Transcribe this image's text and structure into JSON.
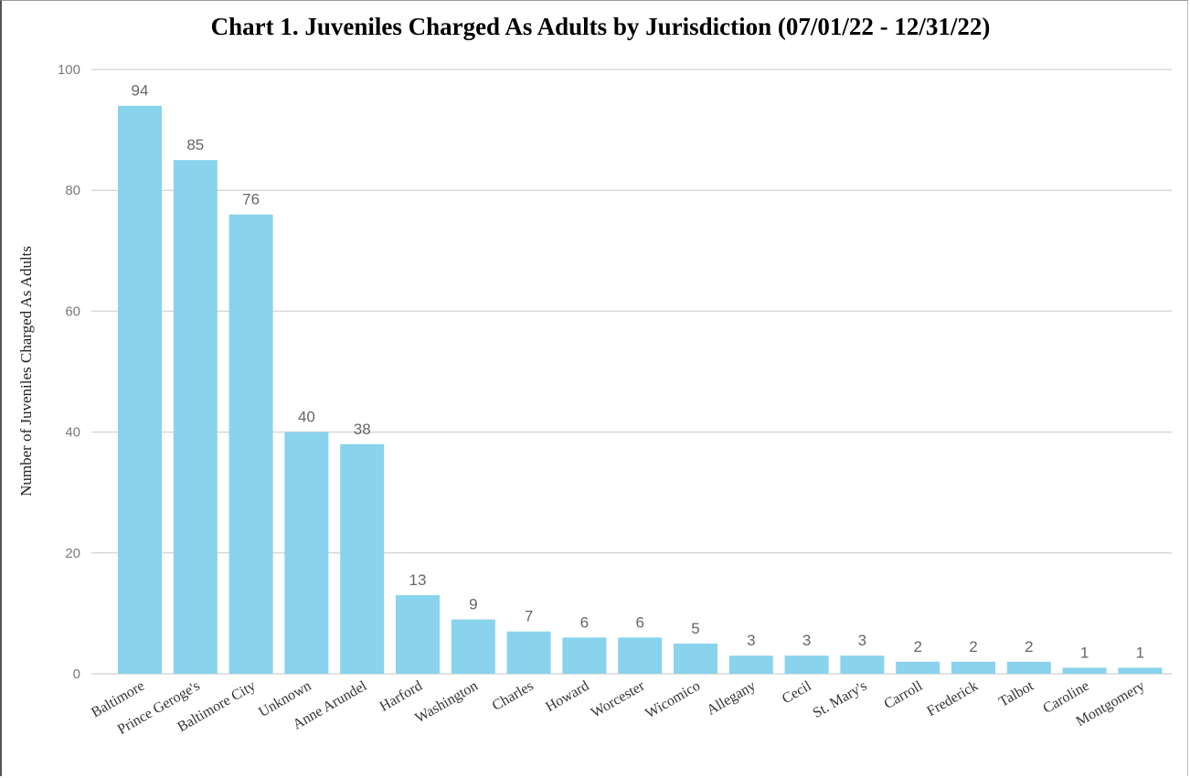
{
  "chart_data": {
    "type": "bar",
    "title": "Chart 1. Juveniles Charged As Adults by Jurisdiction (07/01/22 - 12/31/22)",
    "xlabel": "",
    "ylabel": "Number of Juveniles Charged As Adults",
    "ylim": [
      0,
      100
    ],
    "yticks": [
      0,
      20,
      40,
      60,
      80,
      100
    ],
    "grid": true,
    "bar_color": "#89d3ec",
    "categories": [
      "Baltimore",
      "Prince Geroge's",
      "Baltimore City",
      "Unknown",
      "Anne Arundel",
      "Harford",
      "Washington",
      "Charles",
      "Howard",
      "Worcester",
      "Wicomico",
      "Allegany",
      "Cecil",
      "St. Mary's",
      "Carroll",
      "Frederick",
      "Talbot",
      "Caroline",
      "Montgomery"
    ],
    "values": [
      94,
      85,
      76,
      40,
      38,
      13,
      9,
      7,
      6,
      6,
      5,
      3,
      3,
      3,
      2,
      2,
      2,
      1,
      1
    ]
  }
}
